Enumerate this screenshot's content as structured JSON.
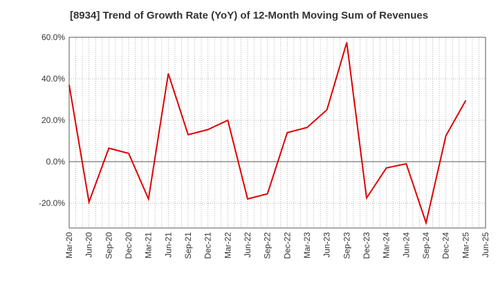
{
  "chart_data": {
    "type": "line",
    "title": "[8934]  Trend of Growth Rate (YoY) of 12-Month Moving Sum of Revenues",
    "xlabel": "",
    "ylabel": "",
    "x_ticks": [
      "Mar-20",
      "Jun-20",
      "Sep-20",
      "Dec-20",
      "Mar-21",
      "Jun-21",
      "Sep-21",
      "Dec-21",
      "Mar-22",
      "Jun-22",
      "Sep-22",
      "Dec-22",
      "Mar-23",
      "Jun-23",
      "Sep-23",
      "Dec-23",
      "Mar-24",
      "Jun-24",
      "Sep-24",
      "Dec-24",
      "Mar-25",
      "Jun-25"
    ],
    "y_ticks": [
      {
        "value": 60,
        "label": "60.0%"
      },
      {
        "value": 40,
        "label": "40.0%"
      },
      {
        "value": 20,
        "label": "20.0%"
      },
      {
        "value": 0,
        "label": "0.0%"
      },
      {
        "value": -20,
        "label": "-20.0%"
      }
    ],
    "ylim": [
      -32,
      60
    ],
    "months_per_tick": 3,
    "grid": true,
    "series": [
      {
        "color": "#dd0000",
        "points": [
          {
            "x": "Mar-20",
            "y": 37.0
          },
          {
            "x": "Jun-20",
            "y": -19.5
          },
          {
            "x": "Sep-20",
            "y": 6.5
          },
          {
            "x": "Dec-20",
            "y": 4.0
          },
          {
            "x": "Mar-21",
            "y": -18.0
          },
          {
            "x": "Jun-21",
            "y": 42.5
          },
          {
            "x": "Sep-21",
            "y": 13.0
          },
          {
            "x": "Dec-21",
            "y": 15.5
          },
          {
            "x": "Mar-22",
            "y": 20.0
          },
          {
            "x": "Jun-22",
            "y": -18.0
          },
          {
            "x": "Sep-22",
            "y": -15.5
          },
          {
            "x": "Dec-22",
            "y": 14.0
          },
          {
            "x": "Mar-23",
            "y": 16.5
          },
          {
            "x": "Jun-23",
            "y": 25.0
          },
          {
            "x": "Sep-23",
            "y": 57.5
          },
          {
            "x": "Dec-23",
            "y": -17.5
          },
          {
            "x": "Mar-24",
            "y": -3.0
          },
          {
            "x": "Jun-24",
            "y": -1.0
          },
          {
            "x": "Sep-24",
            "y": -29.5
          },
          {
            "x": "Dec-24",
            "y": 12.5
          },
          {
            "x": "Mar-25",
            "y": 29.5
          }
        ]
      }
    ]
  }
}
